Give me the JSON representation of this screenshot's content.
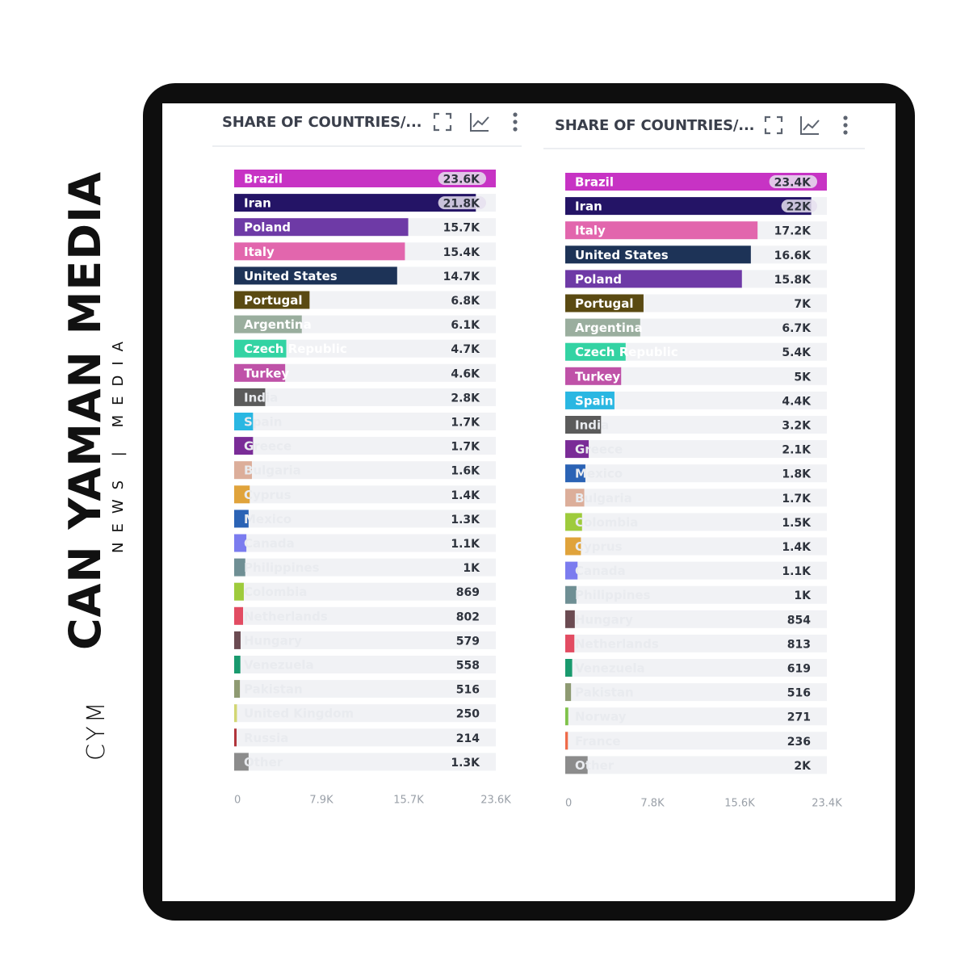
{
  "brand": {
    "name": "CAN YAMAN MEDIA",
    "tagline": "NEWS | MEDIA",
    "monogram": "CYM"
  },
  "panels": [
    {
      "title": "SHARE OF COUNTRIES/...",
      "icons": [
        "fullscreen-icon",
        "line-chart-icon",
        "kebab-menu-icon"
      ]
    },
    {
      "title": "SHARE OF COUNTRIES/...",
      "icons": [
        "fullscreen-icon",
        "line-chart-icon",
        "kebab-menu-icon"
      ]
    }
  ],
  "chart_data": [
    {
      "type": "bar",
      "orientation": "horizontal",
      "categories": [
        "Brazil",
        "Iran",
        "Poland",
        "Italy",
        "United States",
        "Portugal",
        "Argentina",
        "Czech Republic",
        "Turkey",
        "India",
        "Spain",
        "Greece",
        "Bulgaria",
        "Cyprus",
        "Mexico",
        "Canada",
        "Philippines",
        "Colombia",
        "Netherlands",
        "Hungary",
        "Venezuela",
        "Pakistan",
        "United Kingdom",
        "Russia",
        "Other"
      ],
      "values": [
        23600,
        21800,
        15700,
        15400,
        14700,
        6800,
        6100,
        4700,
        4600,
        2800,
        1700,
        1700,
        1600,
        1400,
        1300,
        1100,
        1000,
        869,
        802,
        579,
        558,
        516,
        250,
        214,
        1300
      ],
      "value_labels": [
        "23.6K",
        "21.8K",
        "15.7K",
        "15.4K",
        "14.7K",
        "6.8K",
        "6.1K",
        "4.7K",
        "4.6K",
        "2.8K",
        "1.7K",
        "1.7K",
        "1.6K",
        "1.4K",
        "1.3K",
        "1.1K",
        "1K",
        "869",
        "802",
        "579",
        "558",
        "516",
        "250",
        "214",
        "1.3K"
      ],
      "colors": [
        "#c733c4",
        "#241466",
        "#6e3aa6",
        "#e266ad",
        "#1d3357",
        "#5a4a12",
        "#9aae9e",
        "#33d3a3",
        "#bf52a8",
        "#5b5b5b",
        "#2ab7e2",
        "#7a2c97",
        "#dcae9a",
        "#e0a33b",
        "#2b63b5",
        "#7b7cef",
        "#6f8f94",
        "#9ecb3c",
        "#e24c62",
        "#6b4b52",
        "#199a6e",
        "#8e9a72",
        "#d2d673",
        "#b0343b",
        "#8c8c8c"
      ],
      "xlim": [
        0,
        23600
      ],
      "xticks": [
        "0",
        "7.9K",
        "15.7K",
        "23.6K"
      ]
    },
    {
      "type": "bar",
      "orientation": "horizontal",
      "categories": [
        "Brazil",
        "Iran",
        "Italy",
        "United States",
        "Poland",
        "Portugal",
        "Argentina",
        "Czech Republic",
        "Turkey",
        "Spain",
        "India",
        "Greece",
        "Mexico",
        "Bulgaria",
        "Colombia",
        "Cyprus",
        "Canada",
        "Philippines",
        "Hungary",
        "Netherlands",
        "Venezuela",
        "Pakistan",
        "Norway",
        "France",
        "Other"
      ],
      "values": [
        23400,
        22000,
        17200,
        16600,
        15800,
        7000,
        6700,
        5400,
        5000,
        4400,
        3200,
        2100,
        1800,
        1700,
        1500,
        1400,
        1100,
        1000,
        854,
        813,
        619,
        516,
        271,
        236,
        2000
      ],
      "value_labels": [
        "23.4K",
        "22K",
        "17.2K",
        "16.6K",
        "15.8K",
        "7K",
        "6.7K",
        "5.4K",
        "5K",
        "4.4K",
        "3.2K",
        "2.1K",
        "1.8K",
        "1.7K",
        "1.5K",
        "1.4K",
        "1.1K",
        "1K",
        "854",
        "813",
        "619",
        "516",
        "271",
        "236",
        "2K"
      ],
      "colors": [
        "#c733c4",
        "#241466",
        "#e266ad",
        "#1d3357",
        "#6e3aa6",
        "#5a4a12",
        "#9aae9e",
        "#33d3a3",
        "#bf52a8",
        "#2ab7e2",
        "#5b5b5b",
        "#7a2c97",
        "#2b63b5",
        "#dcae9a",
        "#9ecb3c",
        "#e0a33b",
        "#7b7cef",
        "#6f8f94",
        "#6b4b52",
        "#e24c62",
        "#199a6e",
        "#8e9a72",
        "#7fc24a",
        "#ef6b4a",
        "#8c8c8c"
      ],
      "xlim": [
        0,
        23400
      ],
      "xticks": [
        "0",
        "7.8K",
        "15.6K",
        "23.4K"
      ]
    }
  ]
}
